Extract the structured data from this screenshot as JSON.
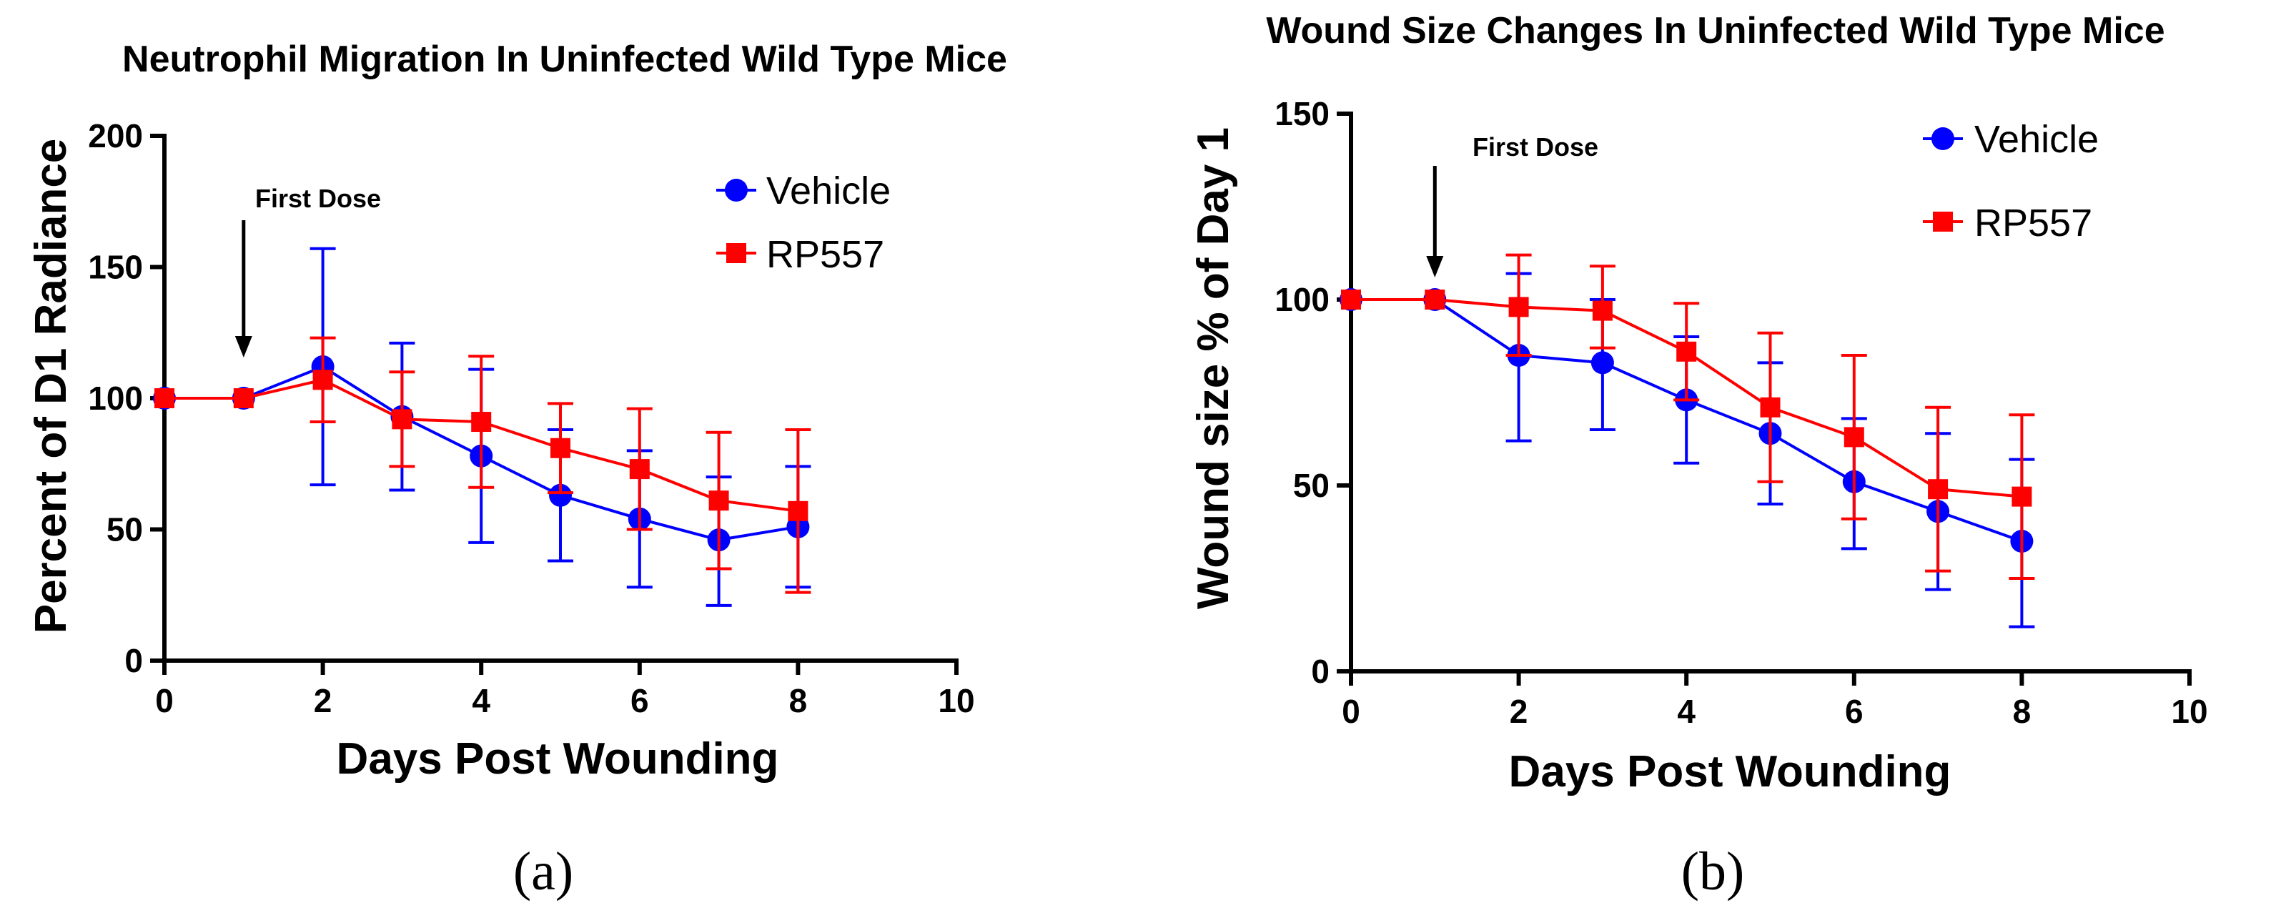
{
  "chart_data": [
    {
      "type": "line",
      "title": "Neutrophil Migration In Uninfected Wild Type Mice",
      "xlabel": "Days Post Wounding",
      "ylabel": "Percent of D1 Radiance",
      "xlim": [
        0,
        10
      ],
      "ylim": [
        0,
        200
      ],
      "xticks": [
        0,
        2,
        4,
        6,
        8,
        10
      ],
      "yticks": [
        0,
        50,
        100,
        150,
        200
      ],
      "legend_position": "top-right",
      "annotation": {
        "text": "First Dose",
        "x": 1
      },
      "caption": "(a)",
      "series": [
        {
          "name": "Vehicle",
          "color": "#0000ff",
          "marker": "circle",
          "x": [
            0,
            1,
            2,
            3,
            4,
            5,
            6,
            7,
            8
          ],
          "y": [
            100,
            100,
            112,
            93,
            78,
            63,
            54,
            46,
            51
          ],
          "error_low": [
            100,
            100,
            67,
            65,
            45,
            38,
            28,
            21,
            28
          ],
          "error_high": [
            100,
            100,
            157,
            121,
            111,
            88,
            80,
            70,
            74
          ]
        },
        {
          "name": "RP557",
          "color": "#ff0000",
          "marker": "square",
          "x": [
            0,
            1,
            2,
            3,
            4,
            5,
            6,
            7,
            8
          ],
          "y": [
            100,
            100,
            107,
            92,
            91,
            81,
            73,
            61,
            57
          ],
          "error_low": [
            100,
            100,
            91,
            74,
            66,
            64,
            50,
            35,
            26
          ],
          "error_high": [
            100,
            100,
            123,
            110,
            116,
            98,
            96,
            87,
            88
          ]
        }
      ]
    },
    {
      "type": "line",
      "title": "Wound Size Changes In Uninfected Wild Type Mice",
      "xlabel": "Days Post Wounding",
      "ylabel": "Wound size % of Day 1",
      "xlim": [
        0,
        10
      ],
      "ylim": [
        0,
        150
      ],
      "xticks": [
        0,
        2,
        4,
        6,
        8,
        10
      ],
      "yticks": [
        0,
        50,
        100,
        150
      ],
      "legend_position": "top-right",
      "annotation": {
        "text": "First Dose",
        "x": 1
      },
      "caption": "(b)",
      "series": [
        {
          "name": "Vehicle",
          "color": "#0000ff",
          "marker": "circle",
          "x": [
            0,
            1,
            2,
            3,
            4,
            5,
            6,
            7,
            8
          ],
          "y": [
            100,
            100,
            85,
            83,
            73,
            64,
            51,
            43,
            35
          ],
          "error_low": [
            100,
            100,
            62,
            65,
            56,
            45,
            33,
            22,
            12
          ],
          "error_high": [
            100,
            100,
            107,
            100,
            90,
            83,
            68,
            64,
            57
          ]
        },
        {
          "name": "RP557",
          "color": "#ff0000",
          "marker": "square",
          "x": [
            0,
            1,
            2,
            3,
            4,
            5,
            6,
            7,
            8
          ],
          "y": [
            100,
            100,
            98,
            97,
            86,
            71,
            63,
            49,
            47
          ],
          "error_low": [
            100,
            100,
            85,
            87,
            73,
            51,
            41,
            27,
            25
          ],
          "error_high": [
            100,
            100,
            112,
            109,
            99,
            91,
            85,
            71,
            69
          ]
        }
      ]
    }
  ]
}
